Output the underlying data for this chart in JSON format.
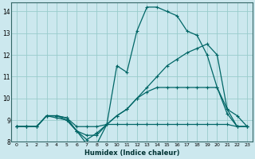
{
  "xlabel": "Humidex (Indice chaleur)",
  "bg_color": "#cce8ee",
  "grid_color": "#99cccc",
  "line_color": "#006666",
  "xlim": [
    -0.5,
    23.5
  ],
  "ylim": [
    8,
    14.4
  ],
  "xticks": [
    0,
    1,
    2,
    3,
    4,
    5,
    6,
    7,
    8,
    9,
    10,
    11,
    12,
    13,
    14,
    15,
    16,
    17,
    18,
    19,
    20,
    21,
    22,
    23
  ],
  "yticks": [
    8,
    9,
    10,
    11,
    12,
    13,
    14
  ],
  "lines": [
    {
      "x": [
        0,
        1,
        2,
        3,
        4,
        5,
        6,
        7,
        8,
        9,
        10,
        11,
        12,
        13,
        14,
        15,
        16,
        17,
        18,
        19,
        20,
        21,
        22,
        23
      ],
      "y": [
        8.7,
        8.7,
        8.7,
        9.2,
        9.2,
        9.1,
        8.7,
        8.7,
        8.7,
        8.8,
        8.8,
        8.8,
        8.8,
        8.8,
        8.8,
        8.8,
        8.8,
        8.8,
        8.8,
        8.8,
        8.8,
        8.8,
        8.7,
        8.7
      ]
    },
    {
      "x": [
        0,
        1,
        2,
        3,
        4,
        5,
        6,
        7,
        8,
        9,
        10,
        11,
        12,
        13,
        14,
        15,
        16,
        17,
        18,
        19,
        20,
        21,
        22,
        23
      ],
      "y": [
        8.7,
        8.7,
        8.7,
        9.2,
        9.2,
        9.1,
        8.5,
        7.9,
        7.9,
        8.8,
        11.5,
        11.2,
        13.1,
        14.2,
        14.2,
        14.0,
        13.8,
        13.1,
        12.9,
        12.0,
        10.5,
        9.3,
        8.7,
        8.7
      ]
    },
    {
      "x": [
        0,
        1,
        2,
        3,
        4,
        5,
        6,
        7,
        8,
        9,
        10,
        11,
        12,
        13,
        14,
        15,
        16,
        17,
        18,
        19,
        20,
        21,
        22,
        23
      ],
      "y": [
        8.7,
        8.7,
        8.7,
        9.2,
        9.1,
        9.0,
        8.5,
        8.3,
        8.3,
        8.8,
        9.2,
        9.5,
        10.0,
        10.5,
        11.0,
        11.5,
        11.8,
        12.1,
        12.3,
        12.5,
        12.0,
        9.5,
        8.7,
        8.7
      ]
    },
    {
      "x": [
        0,
        1,
        2,
        3,
        4,
        5,
        6,
        7,
        8,
        9,
        10,
        11,
        12,
        13,
        14,
        15,
        16,
        17,
        18,
        19,
        20,
        21,
        22,
        23
      ],
      "y": [
        8.7,
        8.7,
        8.7,
        9.2,
        9.2,
        9.0,
        8.5,
        8.1,
        8.4,
        8.8,
        9.2,
        9.5,
        10.0,
        10.3,
        10.5,
        10.5,
        10.5,
        10.5,
        10.5,
        10.5,
        10.5,
        9.5,
        9.2,
        8.7
      ]
    }
  ]
}
